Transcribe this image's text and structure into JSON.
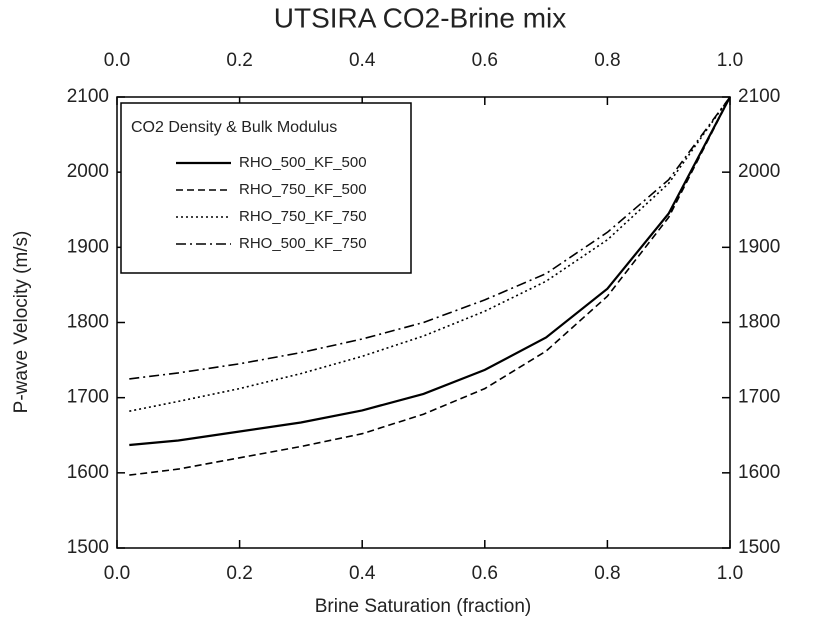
{
  "chart_data": {
    "type": "line",
    "title": "UTSIRA CO2-Brine mix",
    "x_label": "Brine Saturation (fraction)",
    "y_label": "P-wave Velocity (m/s)",
    "legend_title": "CO2 Density & Bulk Modulus",
    "legend_position": "upper left",
    "x": [
      0.02,
      0.1,
      0.2,
      0.3,
      0.4,
      0.5,
      0.6,
      0.7,
      0.8,
      0.9,
      1.0
    ],
    "series": [
      {
        "name": "RHO_500_KF_500",
        "color": "#000000",
        "line_style": "solid",
        "values": [
          1637,
          1643,
          1655,
          1667,
          1683,
          1705,
          1737,
          1780,
          1845,
          1945,
          2100
        ]
      },
      {
        "name": "RHO_750_KF_500",
        "color": "#000000",
        "line_style": "dashed",
        "values": [
          1597,
          1605,
          1620,
          1635,
          1652,
          1678,
          1712,
          1762,
          1835,
          1940,
          2100
        ]
      },
      {
        "name": "RHO_750_KF_750",
        "color": "#000000",
        "line_style": "dotted",
        "values": [
          1682,
          1695,
          1712,
          1732,
          1755,
          1782,
          1815,
          1855,
          1910,
          1985,
          2100
        ]
      },
      {
        "name": "RHO_500_KF_750",
        "color": "#000000",
        "line_style": "dashdot",
        "values": [
          1725,
          1733,
          1745,
          1760,
          1778,
          1800,
          1830,
          1865,
          1920,
          1990,
          2100
        ]
      }
    ],
    "xlim": [
      0,
      1
    ],
    "xticks": [
      {
        "value": 0,
        "label": "0.0"
      },
      0.2,
      0.4,
      0.6,
      0.8,
      {
        "value": 1,
        "label": "1.0"
      }
    ],
    "ylim": [
      1500,
      2100
    ],
    "yticks": [
      1500,
      1600,
      1700,
      1800,
      1900,
      2000,
      2100
    ],
    "grid": false
  }
}
